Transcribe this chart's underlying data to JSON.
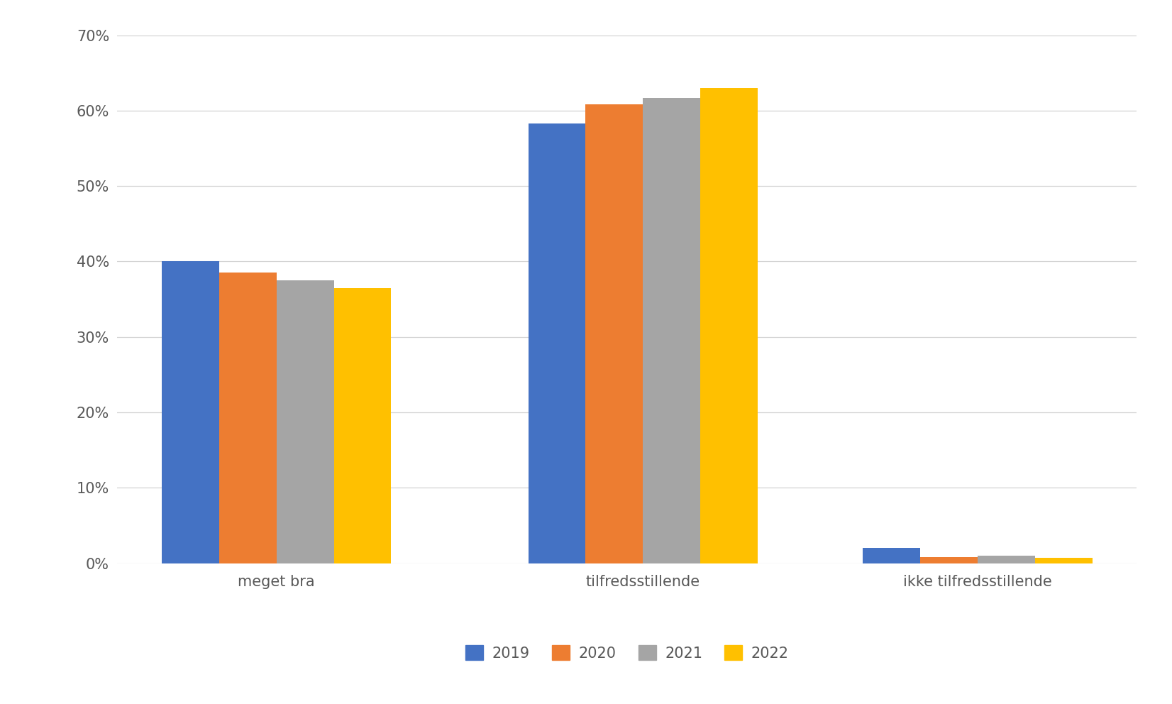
{
  "categories": [
    "meget bra",
    "tilfredsstillende",
    "ikke tilfredsstillende"
  ],
  "series": {
    "2019": [
      0.4,
      0.583,
      0.02
    ],
    "2020": [
      0.385,
      0.608,
      0.008
    ],
    "2021": [
      0.375,
      0.617,
      0.01
    ],
    "2022": [
      0.365,
      0.63,
      0.007
    ]
  },
  "years": [
    "2019",
    "2020",
    "2021",
    "2022"
  ],
  "colors": {
    "2019": "#4472C4",
    "2020": "#ED7D31",
    "2021": "#A5A5A5",
    "2022": "#FFC000"
  },
  "ylim": [
    0,
    0.7
  ],
  "yticks": [
    0.0,
    0.1,
    0.2,
    0.3,
    0.4,
    0.5,
    0.6,
    0.7
  ],
  "background_color": "#FFFFFF",
  "grid_color": "#D3D3D3",
  "bar_width": 0.18,
  "group_positions": [
    0.0,
    1.15,
    2.2
  ],
  "xlim": [
    -0.5,
    2.7
  ]
}
